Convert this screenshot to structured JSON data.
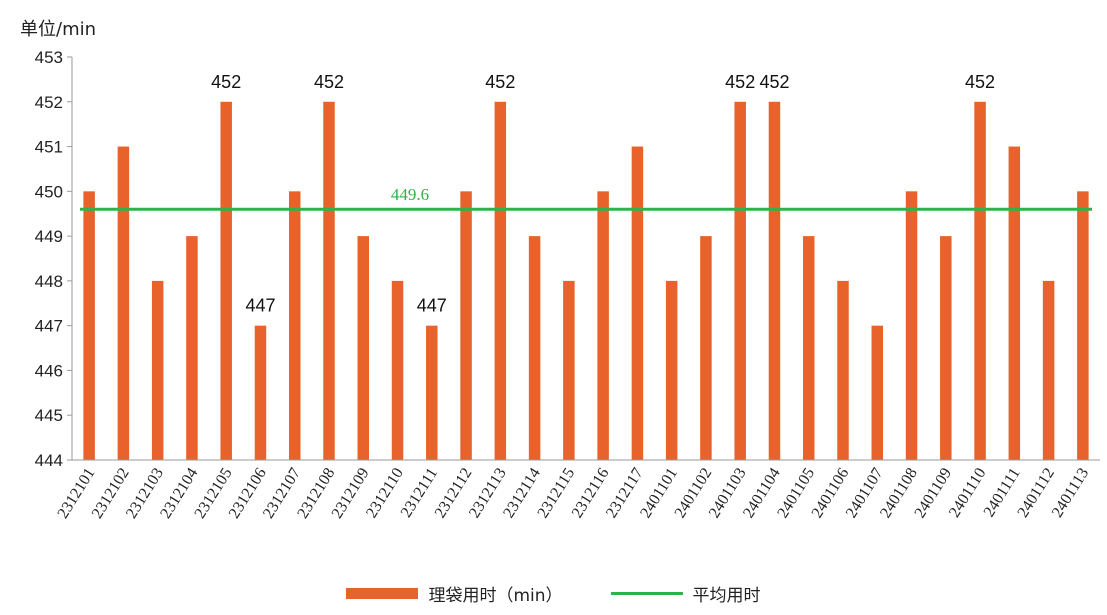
{
  "chart_data": {
    "type": "bar",
    "unit_label": "单位/min",
    "ylim": [
      444,
      453
    ],
    "yticks": [
      444,
      445,
      446,
      447,
      448,
      449,
      450,
      451,
      452,
      453
    ],
    "categories": [
      "2312101",
      "2312102",
      "2312103",
      "2312104",
      "2312105",
      "2312106",
      "2312107",
      "2312108",
      "2312109",
      "2312110",
      "2312111",
      "2312112",
      "2312113",
      "2312114",
      "2312115",
      "2312116",
      "2312117",
      "2401101",
      "2401102",
      "2401103",
      "2401104",
      "2401105",
      "2401106",
      "2401107",
      "2401108",
      "2401109",
      "2401110",
      "2401111",
      "2401112",
      "2401113"
    ],
    "series": [
      {
        "name": "理袋用时（min）",
        "type": "bar",
        "color": "#E8622C",
        "values": [
          450,
          451,
          448,
          449,
          452,
          447,
          450,
          452,
          449,
          448,
          447,
          450,
          452,
          449,
          448,
          450,
          451,
          448,
          449,
          452,
          452,
          449,
          448,
          447,
          450,
          449,
          452,
          451,
          448,
          450
        ]
      },
      {
        "name": "平均用时",
        "type": "line",
        "color": "#2DB34A",
        "value": 449.6
      }
    ],
    "data_labels": [
      {
        "category": "2312105",
        "text": "452"
      },
      {
        "category": "2312106",
        "text": "447"
      },
      {
        "category": "2312108",
        "text": "452"
      },
      {
        "category": "2312111",
        "text": "447"
      },
      {
        "category": "2312113",
        "text": "452"
      },
      {
        "category": "2401103",
        "text": "452"
      },
      {
        "category": "2401104",
        "text": "452"
      },
      {
        "category": "2401110",
        "text": "452"
      }
    ],
    "average_label": "449.6",
    "grid": false,
    "legend_position": "bottom"
  }
}
